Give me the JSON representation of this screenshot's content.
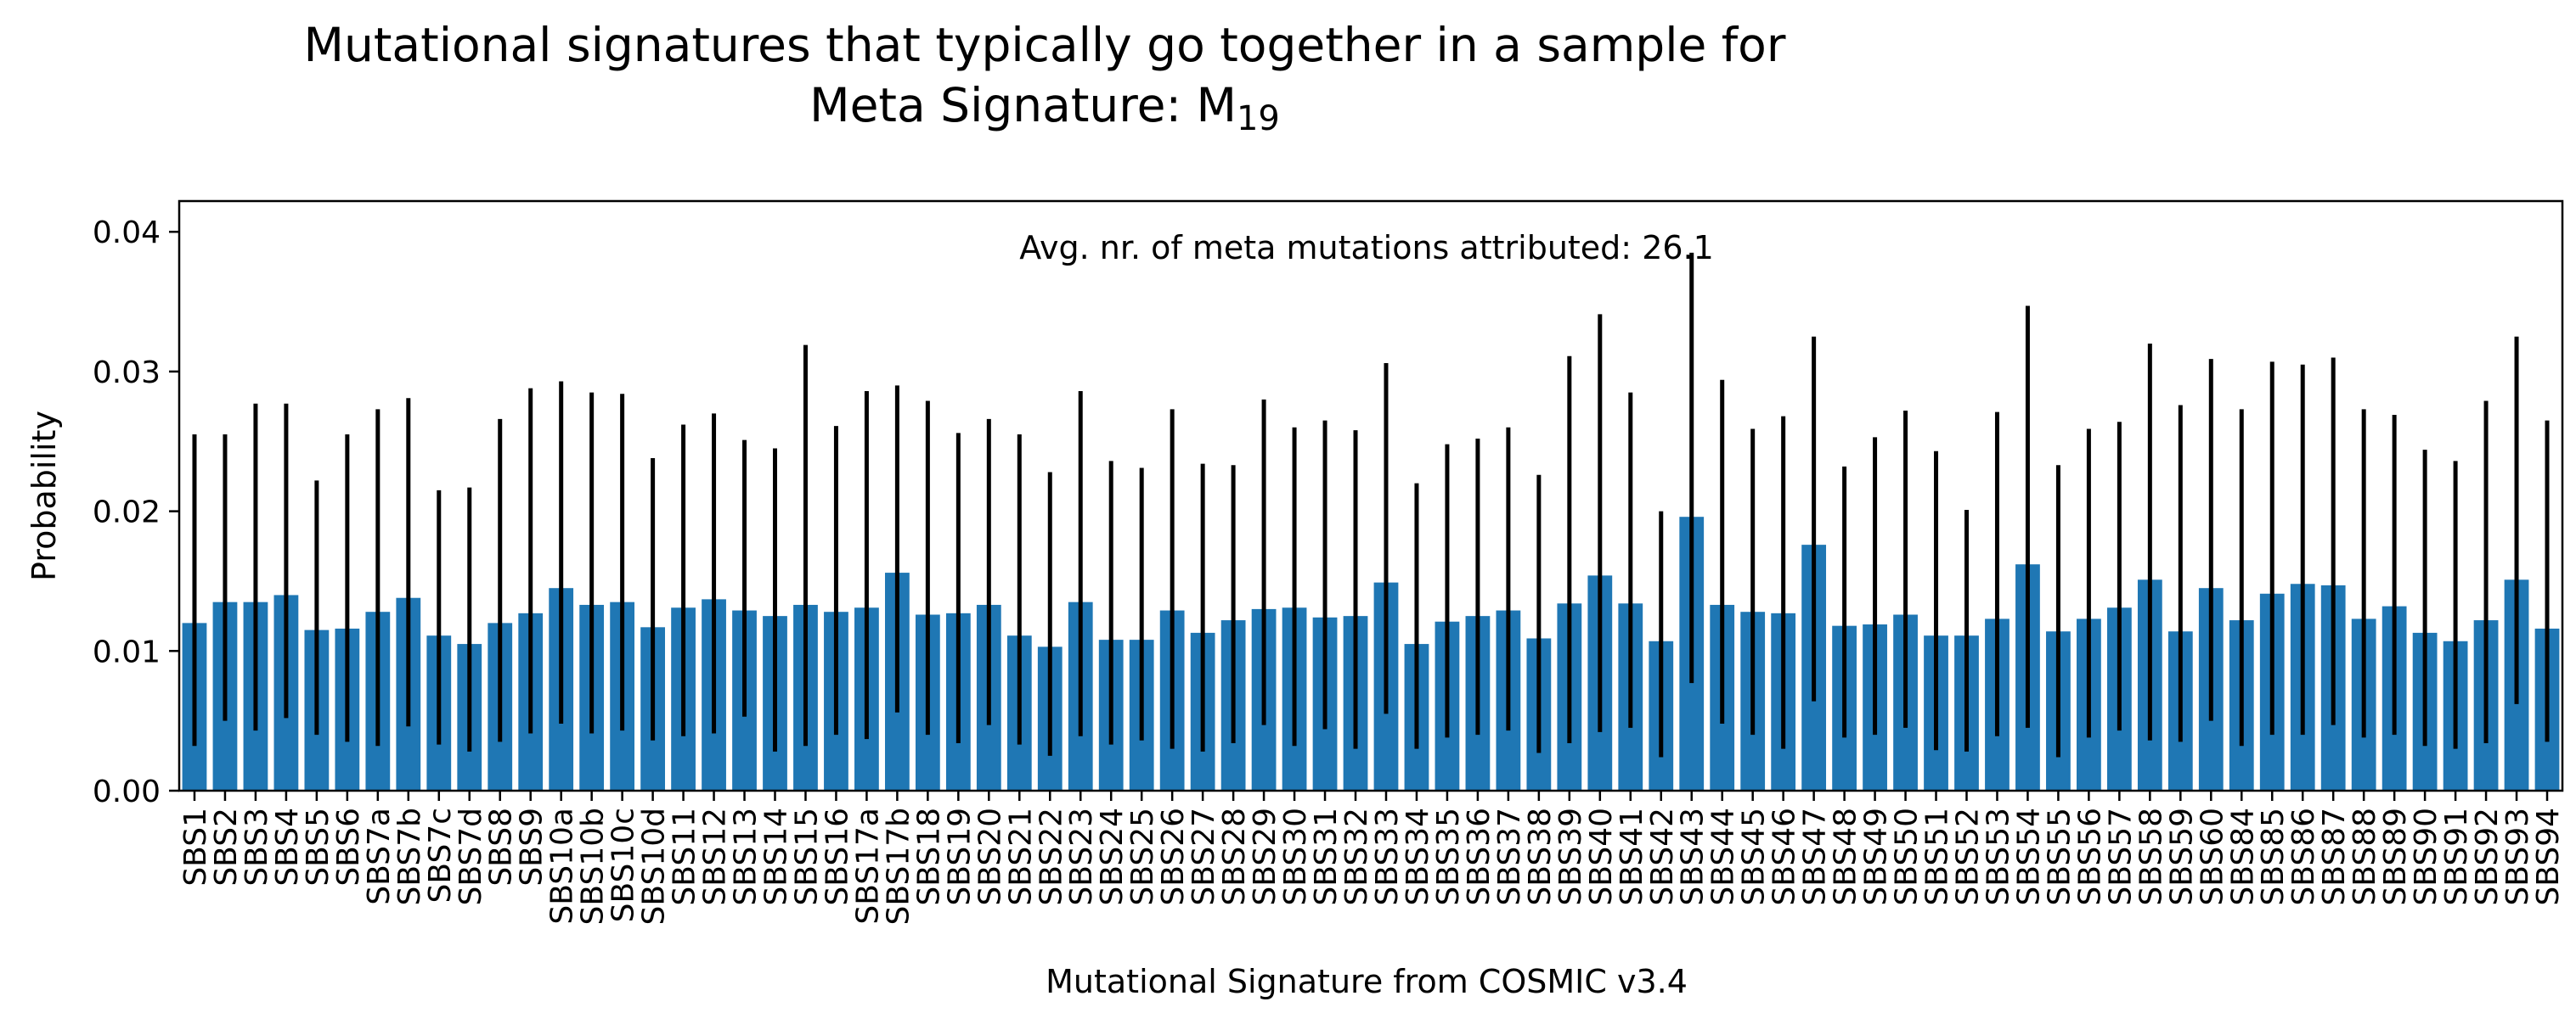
{
  "chart_data": {
    "type": "bar",
    "title_line1": "Mutational signatures that typically go together in a sample for",
    "title_line2_prefix": "Meta Signature: M",
    "title_line2_subscript": "19",
    "xlabel": "Mutational Signature from COSMIC v3.4",
    "ylabel": "Probability",
    "annotation": "Avg. nr. of meta mutations attributed: 26.1",
    "ylim": [
      0,
      0.0422
    ],
    "yticks": [
      0.0,
      0.01,
      0.02,
      0.03,
      0.04
    ],
    "ytick_labels": [
      "0.00",
      "0.01",
      "0.02",
      "0.03",
      "0.04"
    ],
    "grid": false,
    "bar_color": "#1f77b4",
    "error_color": "#000000",
    "categories": [
      "SBS1",
      "SBS2",
      "SBS3",
      "SBS4",
      "SBS5",
      "SBS6",
      "SBS7a",
      "SBS7b",
      "SBS7c",
      "SBS7d",
      "SBS8",
      "SBS9",
      "SBS10a",
      "SBS10b",
      "SBS10c",
      "SBS10d",
      "SBS11",
      "SBS12",
      "SBS13",
      "SBS14",
      "SBS15",
      "SBS16",
      "SBS17a",
      "SBS17b",
      "SBS18",
      "SBS19",
      "SBS20",
      "SBS21",
      "SBS22",
      "SBS23",
      "SBS24",
      "SBS25",
      "SBS26",
      "SBS27",
      "SBS28",
      "SBS29",
      "SBS30",
      "SBS31",
      "SBS32",
      "SBS33",
      "SBS34",
      "SBS35",
      "SBS36",
      "SBS37",
      "SBS38",
      "SBS39",
      "SBS40",
      "SBS41",
      "SBS42",
      "SBS43",
      "SBS44",
      "SBS45",
      "SBS46",
      "SBS47",
      "SBS48",
      "SBS49",
      "SBS50",
      "SBS51",
      "SBS52",
      "SBS53",
      "SBS54",
      "SBS55",
      "SBS56",
      "SBS57",
      "SBS58",
      "SBS59",
      "SBS60",
      "SBS84",
      "SBS85",
      "SBS86",
      "SBS87",
      "SBS88",
      "SBS89",
      "SBS90",
      "SBS91",
      "SBS92",
      "SBS93",
      "SBS94"
    ],
    "values": [
      0.012,
      0.0135,
      0.0135,
      0.014,
      0.0115,
      0.0116,
      0.0128,
      0.0138,
      0.0111,
      0.0105,
      0.012,
      0.0127,
      0.0145,
      0.0133,
      0.0135,
      0.0117,
      0.0131,
      0.0137,
      0.0129,
      0.0125,
      0.0133,
      0.0128,
      0.0131,
      0.0156,
      0.0126,
      0.0127,
      0.0133,
      0.0111,
      0.0103,
      0.0135,
      0.0108,
      0.0108,
      0.0129,
      0.0113,
      0.0122,
      0.013,
      0.0131,
      0.0124,
      0.0125,
      0.0149,
      0.0105,
      0.0121,
      0.0125,
      0.0129,
      0.0109,
      0.0134,
      0.0154,
      0.0134,
      0.0107,
      0.0196,
      0.0133,
      0.0128,
      0.0127,
      0.0176,
      0.0118,
      0.0119,
      0.0126,
      0.0111,
      0.0111,
      0.0123,
      0.0162,
      0.0114,
      0.0123,
      0.0131,
      0.0151,
      0.0114,
      0.0145,
      0.0122,
      0.0141,
      0.0148,
      0.0147,
      0.0123,
      0.0132,
      0.0113,
      0.0107,
      0.0122,
      0.0151,
      0.0116
    ],
    "err_low": [
      0.0032,
      0.005,
      0.0043,
      0.0052,
      0.004,
      0.0035,
      0.0032,
      0.0046,
      0.0033,
      0.0028,
      0.0035,
      0.0041,
      0.0048,
      0.0041,
      0.0043,
      0.0036,
      0.0039,
      0.0041,
      0.0053,
      0.0028,
      0.0032,
      0.004,
      0.0037,
      0.0056,
      0.004,
      0.0034,
      0.0047,
      0.0033,
      0.0025,
      0.0039,
      0.0033,
      0.0036,
      0.003,
      0.0028,
      0.0034,
      0.0047,
      0.0032,
      0.0044,
      0.003,
      0.0055,
      0.003,
      0.0038,
      0.004,
      0.0043,
      0.0027,
      0.0034,
      0.0042,
      0.0045,
      0.0024,
      0.0077,
      0.0048,
      0.004,
      0.003,
      0.0064,
      0.0038,
      0.004,
      0.0045,
      0.0029,
      0.0028,
      0.0039,
      0.0045,
      0.0024,
      0.0038,
      0.0043,
      0.0036,
      0.0035,
      0.005,
      0.0032,
      0.004,
      0.004,
      0.0047,
      0.0038,
      0.004,
      0.0032,
      0.003,
      0.0034,
      0.0062,
      0.0035
    ],
    "err_high": [
      0.0255,
      0.0255,
      0.0277,
      0.0277,
      0.0222,
      0.0255,
      0.0273,
      0.0281,
      0.0215,
      0.0217,
      0.0266,
      0.0288,
      0.0293,
      0.0285,
      0.0284,
      0.0238,
      0.0262,
      0.027,
      0.0251,
      0.0245,
      0.0319,
      0.0261,
      0.0286,
      0.029,
      0.0279,
      0.0256,
      0.0266,
      0.0255,
      0.0228,
      0.0286,
      0.0236,
      0.0231,
      0.0273,
      0.0234,
      0.0233,
      0.028,
      0.026,
      0.0265,
      0.0258,
      0.0306,
      0.022,
      0.0248,
      0.0252,
      0.026,
      0.0226,
      0.0311,
      0.0341,
      0.0285,
      0.02,
      0.0385,
      0.0294,
      0.0259,
      0.0268,
      0.0325,
      0.0232,
      0.0253,
      0.0272,
      0.0243,
      0.0201,
      0.0271,
      0.0347,
      0.0233,
      0.0259,
      0.0264,
      0.032,
      0.0276,
      0.0309,
      0.0273,
      0.0307,
      0.0305,
      0.031,
      0.0273,
      0.0269,
      0.0244,
      0.0236,
      0.0279,
      0.0325,
      0.0265
    ]
  }
}
